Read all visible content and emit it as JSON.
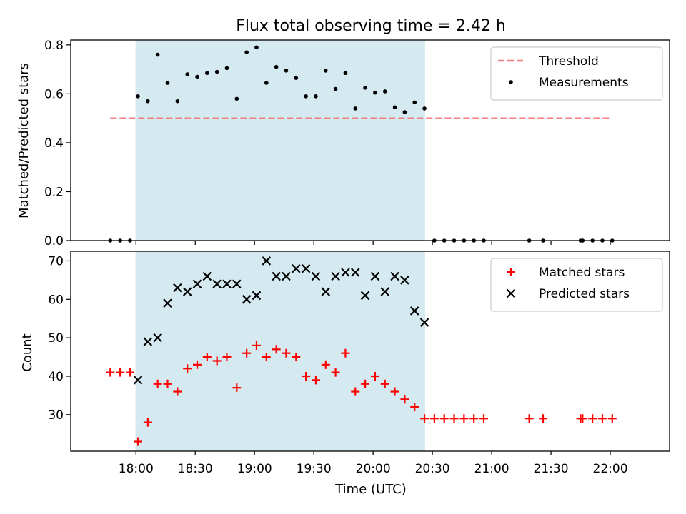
{
  "figure": {
    "title": "Flux total observing time = 2.42 h"
  },
  "chart_data": [
    {
      "type": "scatter",
      "ylabel": "Matched/Predicted stars",
      "xlabel": "",
      "ylim": [
        0,
        0.82
      ],
      "yticks": [
        0.0,
        0.2,
        0.4,
        0.6,
        0.8
      ],
      "ytick_labels": [
        "0.0",
        "0.2",
        "0.4",
        "0.6",
        "0.8"
      ],
      "xlim": [
        "17:27",
        "22:30"
      ],
      "xticks": [
        "18:00",
        "18:30",
        "19:00",
        "19:30",
        "20:00",
        "20:30",
        "21:00",
        "21:30",
        "22:00"
      ],
      "shaded_region": {
        "x": [
          "18:00",
          "20:26"
        ],
        "color": "#d4eaf0"
      },
      "threshold": {
        "value": 0.5,
        "x": [
          "17:47",
          "22:00"
        ],
        "color": "#f08080"
      },
      "legend": {
        "placement": "top-right",
        "entries": [
          "Threshold",
          "Measurements"
        ]
      },
      "series": [
        {
          "name": "Measurements",
          "marker": "dot",
          "color": "#000000",
          "x": [
            "17:47",
            "17:52",
            "17:57",
            "18:01",
            "18:06",
            "18:11",
            "18:16",
            "18:21",
            "18:26",
            "18:31",
            "18:36",
            "18:41",
            "18:46",
            "18:51",
            "18:56",
            "19:01",
            "19:06",
            "19:11",
            "19:16",
            "19:21",
            "19:26",
            "19:31",
            "19:36",
            "19:41",
            "19:46",
            "19:51",
            "19:56",
            "20:01",
            "20:06",
            "20:11",
            "20:16",
            "20:21",
            "20:26",
            "20:31",
            "20:36",
            "20:41",
            "20:46",
            "20:51",
            "20:56",
            "21:19",
            "21:26",
            "21:45",
            "21:46",
            "21:51",
            "21:56",
            "22:01"
          ],
          "y": [
            0,
            0,
            0,
            0.59,
            0.57,
            0.76,
            0.645,
            0.57,
            0.68,
            0.67,
            0.685,
            0.69,
            0.705,
            0.58,
            0.77,
            0.79,
            0.645,
            0.71,
            0.695,
            0.665,
            0.59,
            0.59,
            0.695,
            0.62,
            0.685,
            0.54,
            0.625,
            0.605,
            0.61,
            0.545,
            0.525,
            0.565,
            0.54,
            0,
            0,
            0,
            0,
            0,
            0,
            0,
            0,
            0,
            0,
            0,
            0,
            0
          ]
        }
      ]
    },
    {
      "type": "scatter",
      "ylabel": "Count",
      "xlabel": "Time (UTC)",
      "ylim": [
        20.5,
        72.5
      ],
      "yticks": [
        30,
        40,
        50,
        60,
        70
      ],
      "ytick_labels": [
        "30",
        "40",
        "50",
        "60",
        "70"
      ],
      "xlim": [
        "17:27",
        "22:30"
      ],
      "xticks": [
        "18:00",
        "18:30",
        "19:00",
        "19:30",
        "20:00",
        "20:30",
        "21:00",
        "21:30",
        "22:00"
      ],
      "xtick_labels": [
        "18:00",
        "18:30",
        "19:00",
        "19:30",
        "20:00",
        "20:30",
        "21:00",
        "21:30",
        "22:00"
      ],
      "shaded_region": {
        "x": [
          "18:00",
          "20:26"
        ],
        "color": "#d4eaf0"
      },
      "legend": {
        "placement": "top-right",
        "entries": [
          "Matched stars",
          "Predicted stars"
        ]
      },
      "series": [
        {
          "name": "Matched stars",
          "marker": "plus",
          "color": "#ff0000",
          "x": [
            "17:47",
            "17:52",
            "17:57",
            "18:01",
            "18:06",
            "18:11",
            "18:16",
            "18:21",
            "18:26",
            "18:31",
            "18:36",
            "18:41",
            "18:46",
            "18:51",
            "18:56",
            "19:01",
            "19:06",
            "19:11",
            "19:16",
            "19:21",
            "19:26",
            "19:31",
            "19:36",
            "19:41",
            "19:46",
            "19:51",
            "19:56",
            "20:01",
            "20:06",
            "20:11",
            "20:16",
            "20:21",
            "20:26",
            "20:31",
            "20:36",
            "20:41",
            "20:46",
            "20:51",
            "20:56",
            "21:19",
            "21:26",
            "21:45",
            "21:46",
            "21:51",
            "21:56",
            "22:01"
          ],
          "y": [
            41,
            41,
            41,
            23,
            28,
            38,
            38,
            36,
            42,
            43,
            45,
            44,
            45,
            37,
            46,
            48,
            45,
            47,
            46,
            45,
            40,
            39,
            43,
            41,
            46,
            36,
            38,
            40,
            38,
            36,
            34,
            32,
            29,
            29,
            29,
            29,
            29,
            29,
            29,
            29,
            29,
            29,
            29,
            29,
            29,
            29
          ]
        },
        {
          "name": "Predicted stars",
          "marker": "x",
          "color": "#000000",
          "x": [
            "18:01",
            "18:06",
            "18:11",
            "18:16",
            "18:21",
            "18:26",
            "18:31",
            "18:36",
            "18:41",
            "18:46",
            "18:51",
            "18:56",
            "19:01",
            "19:06",
            "19:11",
            "19:16",
            "19:21",
            "19:26",
            "19:31",
            "19:36",
            "19:41",
            "19:46",
            "19:51",
            "19:56",
            "20:01",
            "20:06",
            "20:11",
            "20:16",
            "20:21",
            "20:26"
          ],
          "y": [
            39,
            49,
            50,
            59,
            63,
            62,
            64,
            66,
            64,
            64,
            64,
            60,
            61,
            70,
            66,
            66,
            68,
            68,
            66,
            62,
            66,
            67,
            67,
            61,
            66,
            62,
            66,
            65,
            57,
            54
          ]
        }
      ]
    }
  ]
}
